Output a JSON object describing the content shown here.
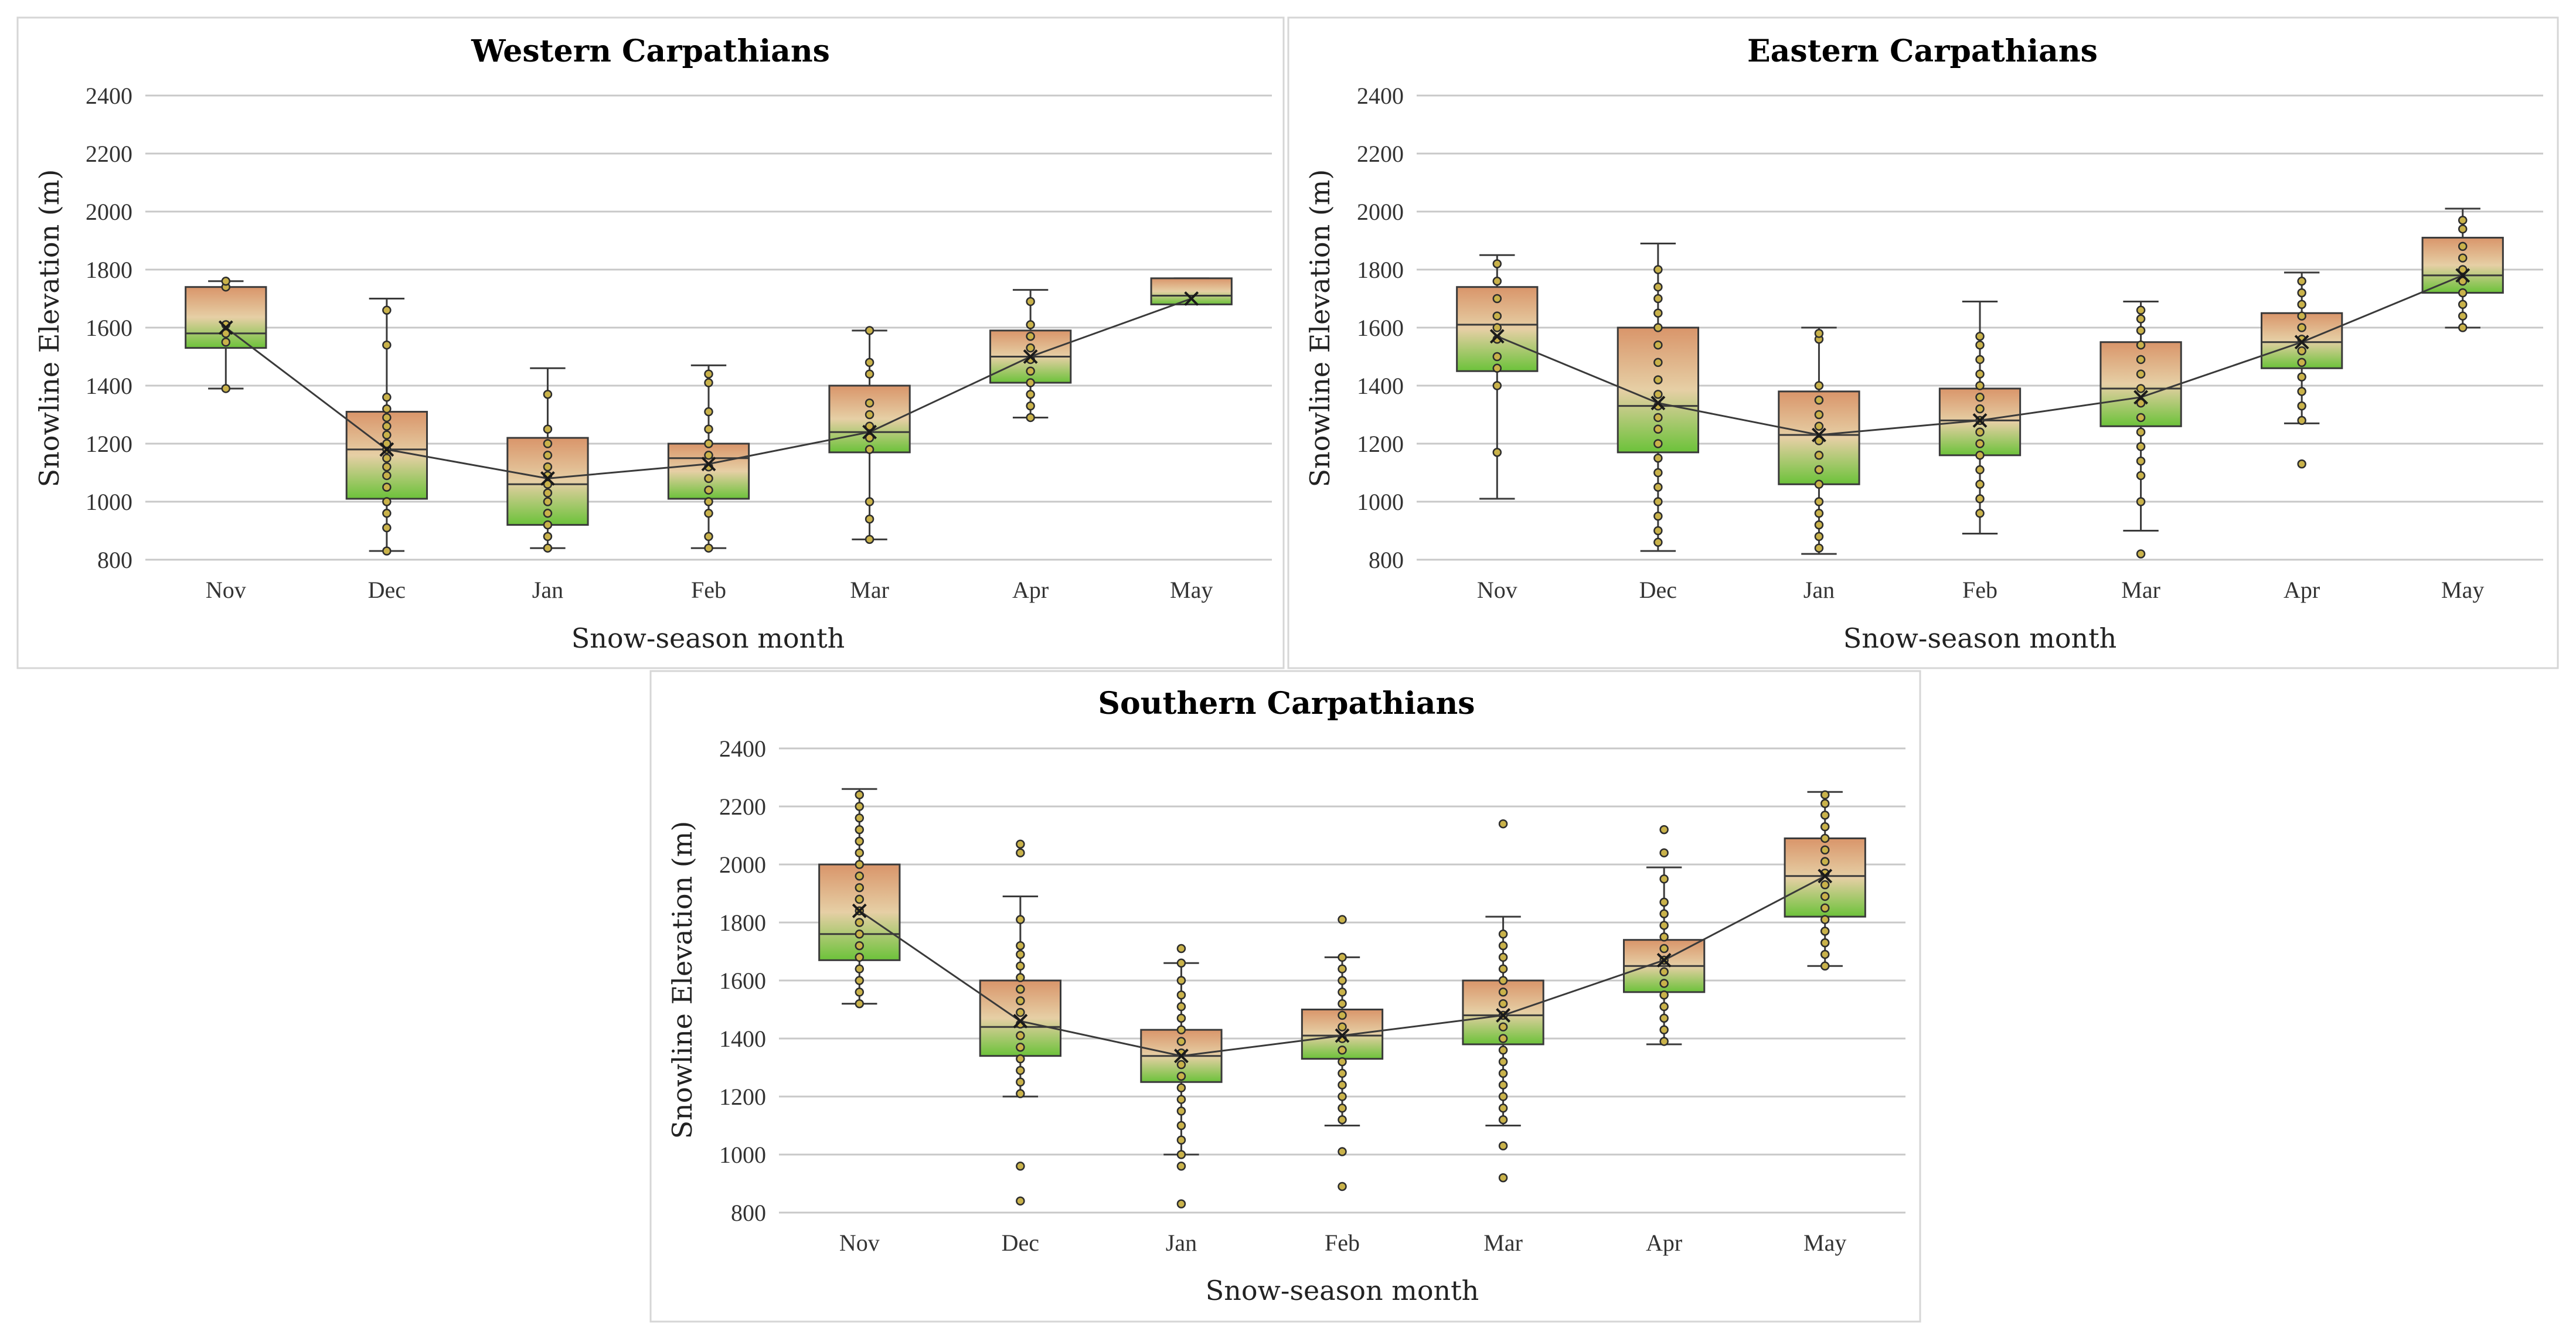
{
  "colors": {
    "box_top": "#d9956a",
    "box_mid": "#e6cfa5",
    "box_bottom": "#6cc23a",
    "point_fill": "#c9b24a",
    "grid": "#c8c8c8"
  },
  "chart_data": [
    {
      "type": "box",
      "title": "Western Carpathians",
      "xlabel": "Snow-season month",
      "ylabel": "Snowline Elevation (m)",
      "ylim": [
        800,
        2400
      ],
      "yticks": [
        800,
        1000,
        1200,
        1400,
        1600,
        1800,
        2000,
        2200,
        2400
      ],
      "categories": [
        "Nov",
        "Dec",
        "Jan",
        "Feb",
        "Mar",
        "Apr",
        "May"
      ],
      "boxes": [
        {
          "min": 1390,
          "q1": 1530,
          "median": 1580,
          "q3": 1740,
          "max": 1760,
          "mean": 1600,
          "points": [
            1390,
            1550,
            1580,
            1610,
            1740,
            1760
          ]
        },
        {
          "min": 830,
          "q1": 1010,
          "median": 1180,
          "q3": 1310,
          "max": 1700,
          "mean": 1180,
          "points": [
            830,
            910,
            960,
            1000,
            1050,
            1090,
            1120,
            1150,
            1180,
            1200,
            1230,
            1260,
            1290,
            1320,
            1360,
            1540,
            1660
          ]
        },
        {
          "min": 840,
          "q1": 920,
          "median": 1060,
          "q3": 1220,
          "max": 1460,
          "mean": 1080,
          "points": [
            840,
            880,
            920,
            960,
            1000,
            1030,
            1060,
            1090,
            1120,
            1160,
            1200,
            1250,
            1370
          ]
        },
        {
          "min": 840,
          "q1": 1010,
          "median": 1150,
          "q3": 1200,
          "max": 1470,
          "mean": 1130,
          "points": [
            840,
            880,
            960,
            1000,
            1040,
            1080,
            1120,
            1160,
            1200,
            1250,
            1310,
            1410,
            1440
          ]
        },
        {
          "min": 870,
          "q1": 1170,
          "median": 1240,
          "q3": 1400,
          "max": 1590,
          "mean": 1240,
          "points": [
            870,
            940,
            1000,
            1180,
            1220,
            1260,
            1300,
            1340,
            1440,
            1480,
            1590
          ]
        },
        {
          "min": 1290,
          "q1": 1410,
          "median": 1500,
          "q3": 1590,
          "max": 1730,
          "mean": 1500,
          "points": [
            1290,
            1330,
            1370,
            1410,
            1450,
            1490,
            1530,
            1570,
            1610,
            1690
          ]
        },
        {
          "min": 1680,
          "q1": 1680,
          "median": 1710,
          "q3": 1770,
          "max": 1770,
          "mean": 1700,
          "points": []
        }
      ]
    },
    {
      "type": "box",
      "title": "Eastern Carpathians",
      "xlabel": "Snow-season month",
      "ylabel": "Snowline Elevation (m)",
      "ylim": [
        800,
        2400
      ],
      "yticks": [
        800,
        1000,
        1200,
        1400,
        1600,
        1800,
        2000,
        2200,
        2400
      ],
      "categories": [
        "Nov",
        "Dec",
        "Jan",
        "Feb",
        "Mar",
        "Apr",
        "May"
      ],
      "boxes": [
        {
          "min": 1010,
          "q1": 1450,
          "median": 1610,
          "q3": 1740,
          "max": 1850,
          "mean": 1570,
          "points": [
            1170,
            1400,
            1460,
            1500,
            1560,
            1600,
            1640,
            1700,
            1760,
            1820
          ]
        },
        {
          "min": 830,
          "q1": 1170,
          "median": 1330,
          "q3": 1600,
          "max": 1890,
          "mean": 1340,
          "points": [
            860,
            900,
            950,
            1000,
            1050,
            1100,
            1150,
            1200,
            1250,
            1290,
            1330,
            1370,
            1420,
            1480,
            1540,
            1600,
            1650,
            1700,
            1740,
            1800
          ]
        },
        {
          "min": 820,
          "q1": 1060,
          "median": 1230,
          "q3": 1380,
          "max": 1600,
          "mean": 1230,
          "points": [
            840,
            880,
            920,
            960,
            1000,
            1060,
            1110,
            1160,
            1210,
            1260,
            1300,
            1350,
            1400,
            1560,
            1580
          ]
        },
        {
          "min": 890,
          "q1": 1160,
          "median": 1280,
          "q3": 1390,
          "max": 1690,
          "mean": 1280,
          "points": [
            960,
            1010,
            1060,
            1110,
            1160,
            1200,
            1240,
            1280,
            1320,
            1360,
            1400,
            1440,
            1490,
            1540,
            1570
          ]
        },
        {
          "min": 900,
          "q1": 1260,
          "median": 1390,
          "q3": 1550,
          "max": 1690,
          "mean": 1360,
          "points": [
            820,
            1000,
            1090,
            1140,
            1190,
            1240,
            1290,
            1340,
            1390,
            1440,
            1490,
            1540,
            1590,
            1630,
            1660
          ]
        },
        {
          "min": 1270,
          "q1": 1460,
          "median": 1550,
          "q3": 1650,
          "max": 1790,
          "mean": 1550,
          "points": [
            1130,
            1280,
            1330,
            1380,
            1430,
            1480,
            1520,
            1560,
            1600,
            1640,
            1680,
            1720,
            1760
          ]
        },
        {
          "min": 1600,
          "q1": 1720,
          "median": 1780,
          "q3": 1910,
          "max": 2010,
          "mean": 1780,
          "points": [
            1600,
            1640,
            1680,
            1720,
            1760,
            1800,
            1840,
            1880,
            1940,
            1970
          ]
        }
      ]
    },
    {
      "type": "box",
      "title": "Southern Carpathians",
      "xlabel": "Snow-season month",
      "ylabel": "Snowline Elevation (m)",
      "ylim": [
        800,
        2400
      ],
      "yticks": [
        800,
        1000,
        1200,
        1400,
        1600,
        1800,
        2000,
        2200,
        2400
      ],
      "categories": [
        "Nov",
        "Dec",
        "Jan",
        "Feb",
        "Mar",
        "Apr",
        "May"
      ],
      "boxes": [
        {
          "min": 1520,
          "q1": 1670,
          "median": 1760,
          "q3": 2000,
          "max": 2260,
          "mean": 1840,
          "points": [
            1520,
            1560,
            1600,
            1640,
            1680,
            1720,
            1760,
            1800,
            1840,
            1880,
            1920,
            1960,
            2000,
            2040,
            2080,
            2120,
            2160,
            2200,
            2240
          ]
        },
        {
          "min": 1200,
          "q1": 1340,
          "median": 1440,
          "q3": 1600,
          "max": 1890,
          "mean": 1460,
          "points": [
            840,
            960,
            1210,
            1250,
            1290,
            1330,
            1370,
            1410,
            1450,
            1490,
            1530,
            1570,
            1610,
            1650,
            1690,
            1720,
            1810,
            2040,
            2070
          ]
        },
        {
          "min": 1000,
          "q1": 1250,
          "median": 1340,
          "q3": 1430,
          "max": 1660,
          "mean": 1340,
          "points": [
            830,
            960,
            1000,
            1050,
            1100,
            1150,
            1190,
            1230,
            1270,
            1310,
            1350,
            1390,
            1430,
            1470,
            1510,
            1550,
            1600,
            1660,
            1710
          ]
        },
        {
          "min": 1100,
          "q1": 1330,
          "median": 1410,
          "q3": 1500,
          "max": 1680,
          "mean": 1410,
          "points": [
            890,
            1010,
            1120,
            1160,
            1200,
            1240,
            1280,
            1320,
            1360,
            1400,
            1440,
            1480,
            1520,
            1560,
            1600,
            1640,
            1680,
            1810
          ]
        },
        {
          "min": 1100,
          "q1": 1380,
          "median": 1480,
          "q3": 1600,
          "max": 1820,
          "mean": 1480,
          "points": [
            920,
            1030,
            1120,
            1160,
            1200,
            1240,
            1280,
            1320,
            1360,
            1400,
            1440,
            1480,
            1520,
            1560,
            1600,
            1640,
            1680,
            1720,
            1760,
            2140
          ]
        },
        {
          "min": 1380,
          "q1": 1560,
          "median": 1650,
          "q3": 1740,
          "max": 1990,
          "mean": 1670,
          "points": [
            1390,
            1430,
            1470,
            1510,
            1550,
            1590,
            1630,
            1670,
            1710,
            1750,
            1790,
            1830,
            1870,
            1950,
            2040,
            2120
          ]
        },
        {
          "min": 1650,
          "q1": 1820,
          "median": 1960,
          "q3": 2090,
          "max": 2250,
          "mean": 1960,
          "points": [
            1650,
            1690,
            1730,
            1770,
            1810,
            1850,
            1890,
            1930,
            1970,
            2010,
            2050,
            2090,
            2130,
            2170,
            2210,
            2240
          ]
        }
      ]
    }
  ]
}
